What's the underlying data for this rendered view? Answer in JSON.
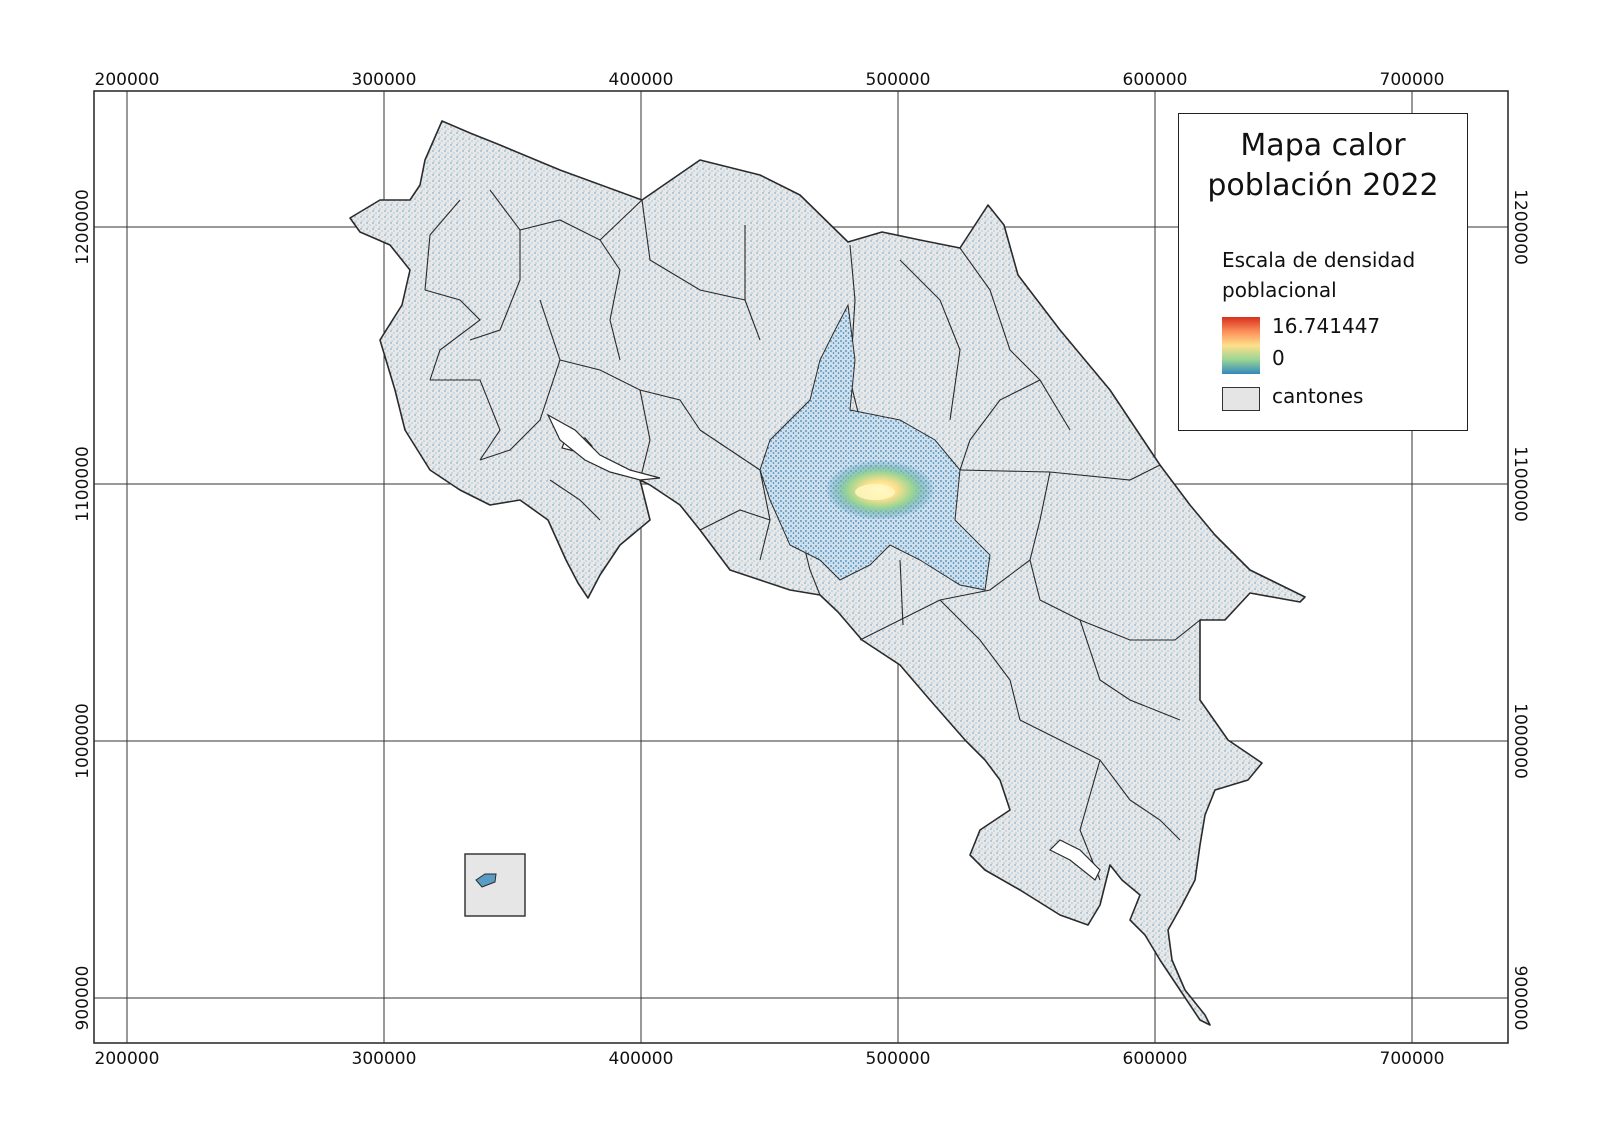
{
  "map": {
    "x_ticks": [
      "200000",
      "300000",
      "400000",
      "500000",
      "600000",
      "700000"
    ],
    "y_ticks": [
      "1200000",
      "1100000",
      "1000000",
      "900000"
    ],
    "colors": {
      "canton_fill": "#e6e6e6",
      "canton_border": "#2b2b2b",
      "density_low": "#3288bd",
      "density_mid": "#fee08b",
      "density_high": "#d7301f",
      "grid": "#333333"
    }
  },
  "legend": {
    "title_line1": "Mapa calor",
    "title_line2": "población 2022",
    "subtitle_line1": "Escala de densidad",
    "subtitle_line2": "poblacional",
    "ramp_max": "16.741447",
    "ramp_min": "0",
    "layer_label": "cantones"
  }
}
